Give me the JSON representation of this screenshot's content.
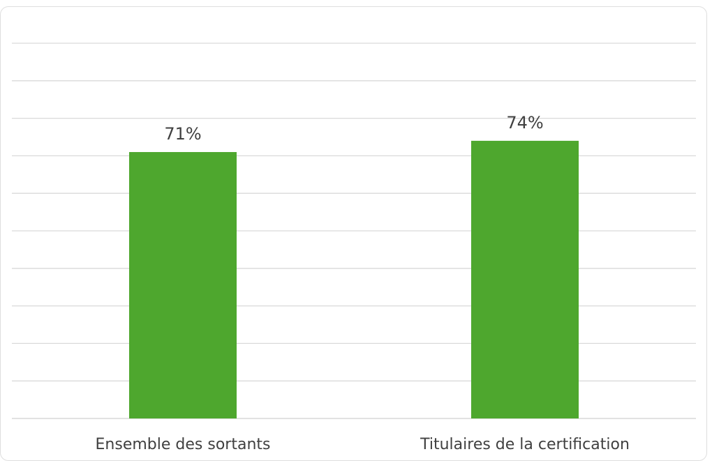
{
  "chart_data": {
    "type": "bar",
    "categories": [
      "Ensemble des sortants",
      "Titulaires de la certification"
    ],
    "values": [
      71,
      74
    ],
    "data_labels": [
      "71%",
      "74%"
    ],
    "title": "",
    "xlabel": "",
    "ylabel": "",
    "ylim": [
      0,
      100
    ],
    "yaxis_visible": false,
    "grid": true,
    "legend": "none",
    "colors": {
      "bar": "#4ea72e",
      "grid": "#d9d9d9",
      "text": "#404040"
    }
  }
}
